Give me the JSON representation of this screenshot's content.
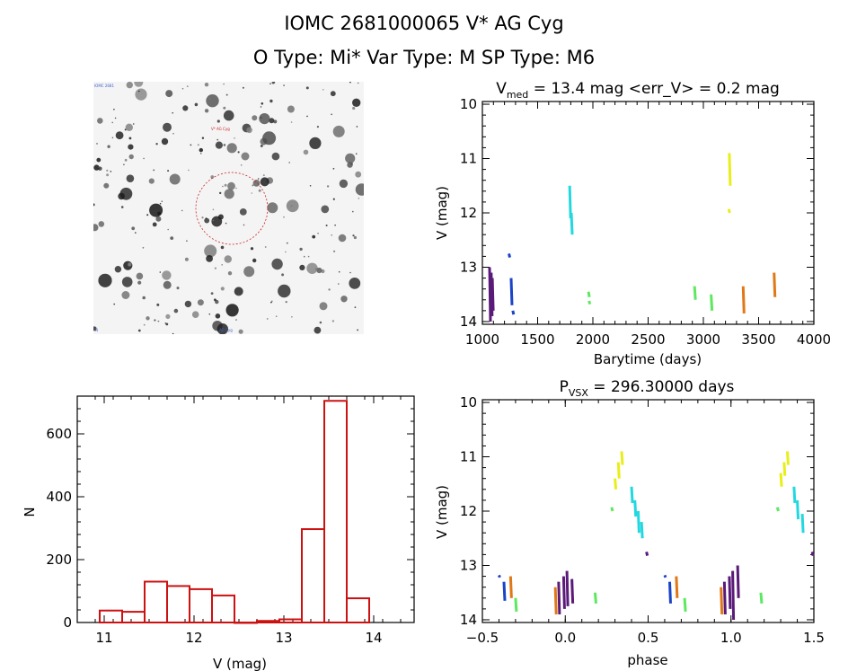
{
  "header": {
    "line1": "IOMC 2681000065    V* AG Cyg",
    "line2": "O Type: Mi*  Var Type: M  SP Type: M6"
  },
  "finder": {
    "corner_label_top": "IOMC 2681",
    "target_label": "V* AG Cyg",
    "bottom_label": "AG Cyg",
    "corner_label_bottom_left": "N"
  },
  "colors": {
    "purple": "#5a1a78",
    "blue": "#1a44c8",
    "cyan": "#22d8e0",
    "green": "#5ee860",
    "yellow": "#e8ee18",
    "orange": "#e07818",
    "red": "#cc1111"
  },
  "chart_data": [
    {
      "id": "lightcurve",
      "type": "scatter",
      "title_main": "V",
      "title_sub": "med",
      "title_rest": " = 13.4 mag <err_V> = 0.2 mag",
      "xlabel": "Barytime (days)",
      "ylabel": "V (mag)",
      "xlim": [
        1000,
        4000
      ],
      "ylim": [
        14.05,
        9.95
      ],
      "xticks": [
        1000,
        1500,
        2000,
        2500,
        3000,
        3500,
        4000
      ],
      "yticks": [
        10,
        11,
        12,
        13,
        14
      ],
      "segments": [
        {
          "color": "purple",
          "x": 1065,
          "y1": 13.0,
          "y2": 14.0
        },
        {
          "color": "purple",
          "x": 1080,
          "y1": 13.1,
          "y2": 13.9
        },
        {
          "color": "purple",
          "x": 1090,
          "y1": 13.2,
          "y2": 13.8
        },
        {
          "color": "blue",
          "x": 1240,
          "y1": 12.75,
          "y2": 12.82
        },
        {
          "color": "blue",
          "x": 1260,
          "y1": 13.2,
          "y2": 13.7
        },
        {
          "color": "blue",
          "x": 1275,
          "y1": 13.8,
          "y2": 13.87
        },
        {
          "color": "cyan",
          "x": 1790,
          "y1": 11.5,
          "y2": 12.1
        },
        {
          "color": "cyan",
          "x": 1805,
          "y1": 12.0,
          "y2": 12.4
        },
        {
          "color": "green",
          "x": 1960,
          "y1": 13.45,
          "y2": 13.55
        },
        {
          "color": "green",
          "x": 1965,
          "y1": 13.62,
          "y2": 13.68
        },
        {
          "color": "green",
          "x": 2920,
          "y1": 13.35,
          "y2": 13.6
        },
        {
          "color": "green",
          "x": 3070,
          "y1": 13.5,
          "y2": 13.8
        },
        {
          "color": "yellow",
          "x": 3235,
          "y1": 10.9,
          "y2": 11.5
        },
        {
          "color": "yellow",
          "x": 3230,
          "y1": 11.93,
          "y2": 12.0
        },
        {
          "color": "orange",
          "x": 3360,
          "y1": 13.35,
          "y2": 13.85
        },
        {
          "color": "orange",
          "x": 3640,
          "y1": 13.1,
          "y2": 13.55
        }
      ]
    },
    {
      "id": "histogram",
      "type": "bar",
      "xlabel": "V (mag)",
      "ylabel": "N",
      "xlim": [
        10.7,
        14.45
      ],
      "ylim": [
        0,
        720
      ],
      "xticks": [
        11,
        12,
        13,
        14
      ],
      "yticks": [
        0,
        200,
        400,
        600
      ],
      "bin_edges": [
        10.95,
        11.2,
        11.45,
        11.7,
        11.95,
        12.2,
        12.45,
        12.7,
        12.95,
        13.2,
        13.45,
        13.7,
        13.95
      ],
      "counts": [
        38,
        34,
        130,
        116,
        106,
        86,
        0,
        5,
        10,
        297,
        705,
        77
      ],
      "bar_color": "red"
    },
    {
      "id": "phased",
      "type": "scatter",
      "title_main": "P",
      "title_sub": "VSX",
      "title_rest": " = 296.30000 days",
      "xlabel": "phase",
      "ylabel": "V (mag)",
      "xlim": [
        -0.5,
        1.5
      ],
      "ylim": [
        14.05,
        9.95
      ],
      "xticks": [
        -0.5,
        0.0,
        0.5,
        1.0,
        1.5
      ],
      "xtick_labels": [
        "−0.5",
        "0.0",
        "0.5",
        "1.0",
        "1.5"
      ],
      "yticks": [
        10,
        11,
        12,
        13,
        14
      ],
      "segments": [
        {
          "color": "purple",
          "x": -0.04,
          "y1": 13.3,
          "y2": 13.9
        },
        {
          "color": "purple",
          "x": -0.01,
          "y1": 13.2,
          "y2": 13.8
        },
        {
          "color": "purple",
          "x": 0.01,
          "y1": 13.1,
          "y2": 13.75
        },
        {
          "color": "purple",
          "x": 0.04,
          "y1": 13.25,
          "y2": 13.7
        },
        {
          "color": "purple",
          "x": 0.96,
          "y1": 13.3,
          "y2": 13.9
        },
        {
          "color": "purple",
          "x": 0.99,
          "y1": 13.2,
          "y2": 13.8
        },
        {
          "color": "purple",
          "x": 1.01,
          "y1": 13.1,
          "y2": 14.0
        },
        {
          "color": "purple",
          "x": 1.04,
          "y1": 13.0,
          "y2": 13.6
        },
        {
          "color": "blue",
          "x": -0.37,
          "y1": 13.3,
          "y2": 13.65
        },
        {
          "color": "blue",
          "x": 0.63,
          "y1": 13.3,
          "y2": 13.7
        },
        {
          "color": "orange",
          "x": -0.33,
          "y1": 13.2,
          "y2": 13.6
        },
        {
          "color": "orange",
          "x": -0.06,
          "y1": 13.4,
          "y2": 13.9
        },
        {
          "color": "orange",
          "x": 0.67,
          "y1": 13.2,
          "y2": 13.6
        },
        {
          "color": "orange",
          "x": 0.94,
          "y1": 13.4,
          "y2": 13.9
        },
        {
          "color": "green",
          "x": -0.3,
          "y1": 13.6,
          "y2": 13.85
        },
        {
          "color": "green",
          "x": 0.18,
          "y1": 13.5,
          "y2": 13.7
        },
        {
          "color": "green",
          "x": 0.72,
          "y1": 13.6,
          "y2": 13.85
        },
        {
          "color": "green",
          "x": 1.18,
          "y1": 13.5,
          "y2": 13.7
        },
        {
          "color": "green",
          "x": 0.28,
          "y1": 11.93,
          "y2": 12.0
        },
        {
          "color": "green",
          "x": 1.28,
          "y1": 11.93,
          "y2": 12.0
        },
        {
          "color": "yellow",
          "x": 0.3,
          "y1": 11.4,
          "y2": 11.6
        },
        {
          "color": "yellow",
          "x": 0.32,
          "y1": 11.1,
          "y2": 11.4
        },
        {
          "color": "yellow",
          "x": 0.34,
          "y1": 10.9,
          "y2": 11.15
        },
        {
          "color": "yellow",
          "x": 1.3,
          "y1": 11.3,
          "y2": 11.55
        },
        {
          "color": "yellow",
          "x": 1.32,
          "y1": 11.1,
          "y2": 11.35
        },
        {
          "color": "yellow",
          "x": 1.34,
          "y1": 10.9,
          "y2": 11.15
        },
        {
          "color": "cyan",
          "x": 0.4,
          "y1": 11.55,
          "y2": 11.85
        },
        {
          "color": "cyan",
          "x": 0.42,
          "y1": 11.8,
          "y2": 12.1
        },
        {
          "color": "cyan",
          "x": 0.44,
          "y1": 12.0,
          "y2": 12.4
        },
        {
          "color": "cyan",
          "x": 0.46,
          "y1": 12.2,
          "y2": 12.5
        },
        {
          "color": "cyan",
          "x": 1.38,
          "y1": 11.55,
          "y2": 11.85
        },
        {
          "color": "cyan",
          "x": 1.4,
          "y1": 11.8,
          "y2": 12.15
        },
        {
          "color": "cyan",
          "x": 1.43,
          "y1": 12.05,
          "y2": 12.4
        },
        {
          "color": "purple",
          "x": 0.49,
          "y1": 12.75,
          "y2": 12.82
        },
        {
          "color": "purple",
          "x": 1.49,
          "y1": 12.75,
          "y2": 12.82
        },
        {
          "color": "blue",
          "x": 0.6,
          "y1": 13.18,
          "y2": 13.22
        },
        {
          "color": "blue",
          "x": -0.4,
          "y1": 13.18,
          "y2": 13.22
        }
      ]
    }
  ]
}
